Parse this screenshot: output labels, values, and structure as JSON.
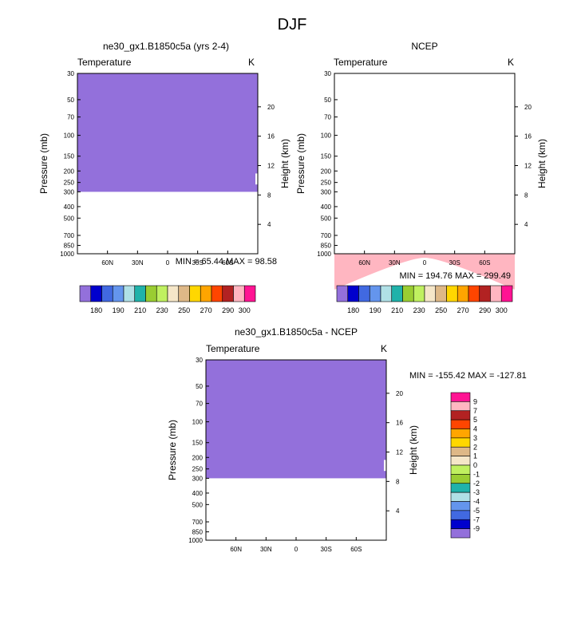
{
  "page_title": "DJF",
  "colors": {
    "fill_low": "#9370DB",
    "blank": "#FFFFFF",
    "frame": "#000000"
  },
  "chart_data": [
    {
      "type": "heatmap",
      "title": "ne30_gx1.B1850c5a (yrs 2-4)",
      "left_label": "Temperature",
      "right_label": "K",
      "ylabel": "Pressure (mb)",
      "y2label": "Height (km)",
      "y_ticks": [
        "30",
        "50",
        "70",
        "100",
        "150",
        "200",
        "250",
        "300",
        "400",
        "500",
        "700",
        "850",
        "1000"
      ],
      "y2_ticks": [
        "20",
        "16",
        "12",
        "8",
        "4"
      ],
      "x_ticks": [
        "60N",
        "30N",
        "0",
        "30S",
        "60S"
      ],
      "xlim": [
        "90N",
        "90S"
      ],
      "ylim": [
        1000,
        30
      ],
      "fill_top_pressure": 30,
      "fill_bottom_pressure": 300,
      "stats": {
        "min_label": "MIN =",
        "min": "65.44",
        "max_label": "MAX =",
        "max": "98.58"
      },
      "colorbar": {
        "orientation": "horizontal",
        "colors": [
          "#9370DB",
          "#0000CD",
          "#4169E1",
          "#6495ED",
          "#B0E0E6",
          "#20B2AA",
          "#9ACD32",
          "#C0F060",
          "#F5E6C8",
          "#DEB887",
          "#FFD700",
          "#FFA500",
          "#FF4500",
          "#B22222",
          "#FFB6C1",
          "#FF1493"
        ],
        "labels": [
          "180",
          "190",
          "210",
          "230",
          "250",
          "270",
          "290",
          "300"
        ]
      }
    },
    {
      "type": "heatmap",
      "title": "NCEP",
      "left_label": "Temperature",
      "right_label": "K",
      "ylabel": "Pressure (mb)",
      "y2label": "Height (km)",
      "y_ticks": [
        "30",
        "50",
        "70",
        "100",
        "150",
        "200",
        "250",
        "300",
        "400",
        "500",
        "700",
        "850",
        "1000"
      ],
      "y2_ticks": [
        "20",
        "16",
        "12",
        "8",
        "4"
      ],
      "x_ticks": [
        "60N",
        "30N",
        "0",
        "30S",
        "60S"
      ],
      "xlim": [
        "90N",
        "90S"
      ],
      "ylim": [
        1000,
        30
      ],
      "stats": {
        "min_label": "MIN =",
        "min": "194.76",
        "max_label": "MAX =",
        "max": "299.49"
      },
      "colorbar": {
        "orientation": "horizontal",
        "colors": [
          "#9370DB",
          "#0000CD",
          "#4169E1",
          "#6495ED",
          "#B0E0E6",
          "#20B2AA",
          "#9ACD32",
          "#C0F060",
          "#F5E6C8",
          "#DEB887",
          "#FFD700",
          "#FFA500",
          "#FF4500",
          "#B22222",
          "#FFB6C1",
          "#FF1493"
        ],
        "labels": [
          "180",
          "190",
          "210",
          "230",
          "250",
          "270",
          "290",
          "300"
        ]
      }
    },
    {
      "type": "heatmap",
      "title": "ne30_gx1.B1850c5a - NCEP",
      "left_label": "Temperature",
      "right_label": "K",
      "ylabel": "Pressure (mb)",
      "y2label": "Height (km)",
      "y_ticks": [
        "30",
        "50",
        "70",
        "100",
        "150",
        "200",
        "250",
        "300",
        "400",
        "500",
        "700",
        "850",
        "1000"
      ],
      "y2_ticks": [
        "20",
        "16",
        "12",
        "8",
        "4"
      ],
      "x_ticks": [
        "60N",
        "30N",
        "0",
        "30S",
        "60S"
      ],
      "xlim": [
        "90N",
        "90S"
      ],
      "ylim": [
        1000,
        30
      ],
      "fill_top_pressure": 30,
      "fill_bottom_pressure": 300,
      "stats": {
        "min_label": "MIN =",
        "min": "-155.42",
        "max_label": "MAX =",
        "max": "-127.81"
      },
      "colorbar": {
        "orientation": "vertical",
        "colors": [
          "#FF1493",
          "#FFB6C1",
          "#B22222",
          "#FF4500",
          "#FFA500",
          "#FFD700",
          "#DEB887",
          "#F5E6C8",
          "#C0F060",
          "#9ACD32",
          "#20B2AA",
          "#B0E0E6",
          "#6495ED",
          "#4169E1",
          "#0000CD",
          "#9370DB"
        ],
        "labels": [
          "9",
          "7",
          "5",
          "4",
          "3",
          "2",
          "1",
          "0",
          "-1",
          "-2",
          "-3",
          "-4",
          "-5",
          "-7",
          "-9"
        ]
      }
    }
  ]
}
